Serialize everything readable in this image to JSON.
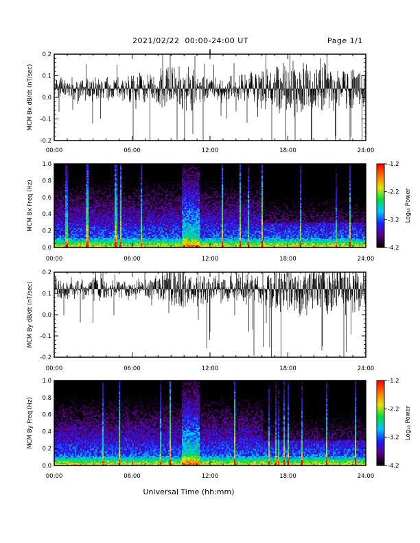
{
  "header": {
    "title": "2021/02/22  00:00-24:00 UT",
    "page": "Page 1/1"
  },
  "xaxis": {
    "label": "Universal Time (hh:mm)",
    "ticks": [
      "00:00",
      "06:00",
      "12:00",
      "18:00",
      "24:00"
    ],
    "range_hours": [
      0,
      24
    ]
  },
  "colors": {
    "trace": "#000000",
    "background": "#ffffff",
    "colormap": [
      "#000000",
      "#5a0080",
      "#1e1eff",
      "#00c8ff",
      "#00dc46",
      "#e6e600",
      "#ff7800",
      "#ff0000"
    ]
  },
  "chart_data": [
    {
      "type": "line",
      "ylabel": "MCM Bx dB/dt (nT/sec)",
      "ylim": [
        -0.2,
        0.2
      ],
      "yticks": [
        "0.2",
        "0.1",
        "0.0",
        "-0.1",
        "-0.2"
      ],
      "baseline": 0.04,
      "envelope_hours": [
        0,
        3,
        6,
        9,
        10,
        12,
        15,
        18,
        21,
        24
      ],
      "envelope_amplitude": [
        0.05,
        0.06,
        0.06,
        0.1,
        0.12,
        0.06,
        0.07,
        0.13,
        0.12,
        0.1
      ]
    },
    {
      "type": "heatmap",
      "ylabel": "MCM Bx Freq (Hz)",
      "ylim": [
        0.0,
        1.0
      ],
      "yticks": [
        "1.0",
        "0.8",
        "0.6",
        "0.4",
        "0.2",
        "0.0"
      ],
      "colorbar": {
        "label": "Log₁₀ Power",
        "range": [
          -4.2,
          -1.2
        ],
        "ticks": [
          "-1.2",
          "-2.2",
          "-3.2",
          "-4.2"
        ]
      }
    },
    {
      "type": "line",
      "ylabel": "MCM By dB/dt (nT/sec)",
      "ylim": [
        -0.2,
        0.2
      ],
      "yticks": [
        "0.2",
        "0.1",
        "0.0",
        "-0.1",
        "-0.2"
      ],
      "baseline": 0.12,
      "envelope_hours": [
        0,
        3,
        6,
        9,
        10,
        12,
        15,
        18,
        21,
        24
      ],
      "envelope_amplitude": [
        0.05,
        0.06,
        0.05,
        0.09,
        0.1,
        0.06,
        0.07,
        0.12,
        0.12,
        0.11
      ]
    },
    {
      "type": "heatmap",
      "ylabel": "MCM By Freq (Hz)",
      "ylim": [
        0.0,
        1.0
      ],
      "yticks": [
        "1.0",
        "0.8",
        "0.6",
        "0.4",
        "0.2",
        "0.0"
      ],
      "colorbar": {
        "label": "Log₁₀ Power",
        "range": [
          -4.2,
          -1.2
        ],
        "ticks": [
          "-1.2",
          "-2.2",
          "-3.2",
          "-4.2"
        ]
      }
    }
  ]
}
